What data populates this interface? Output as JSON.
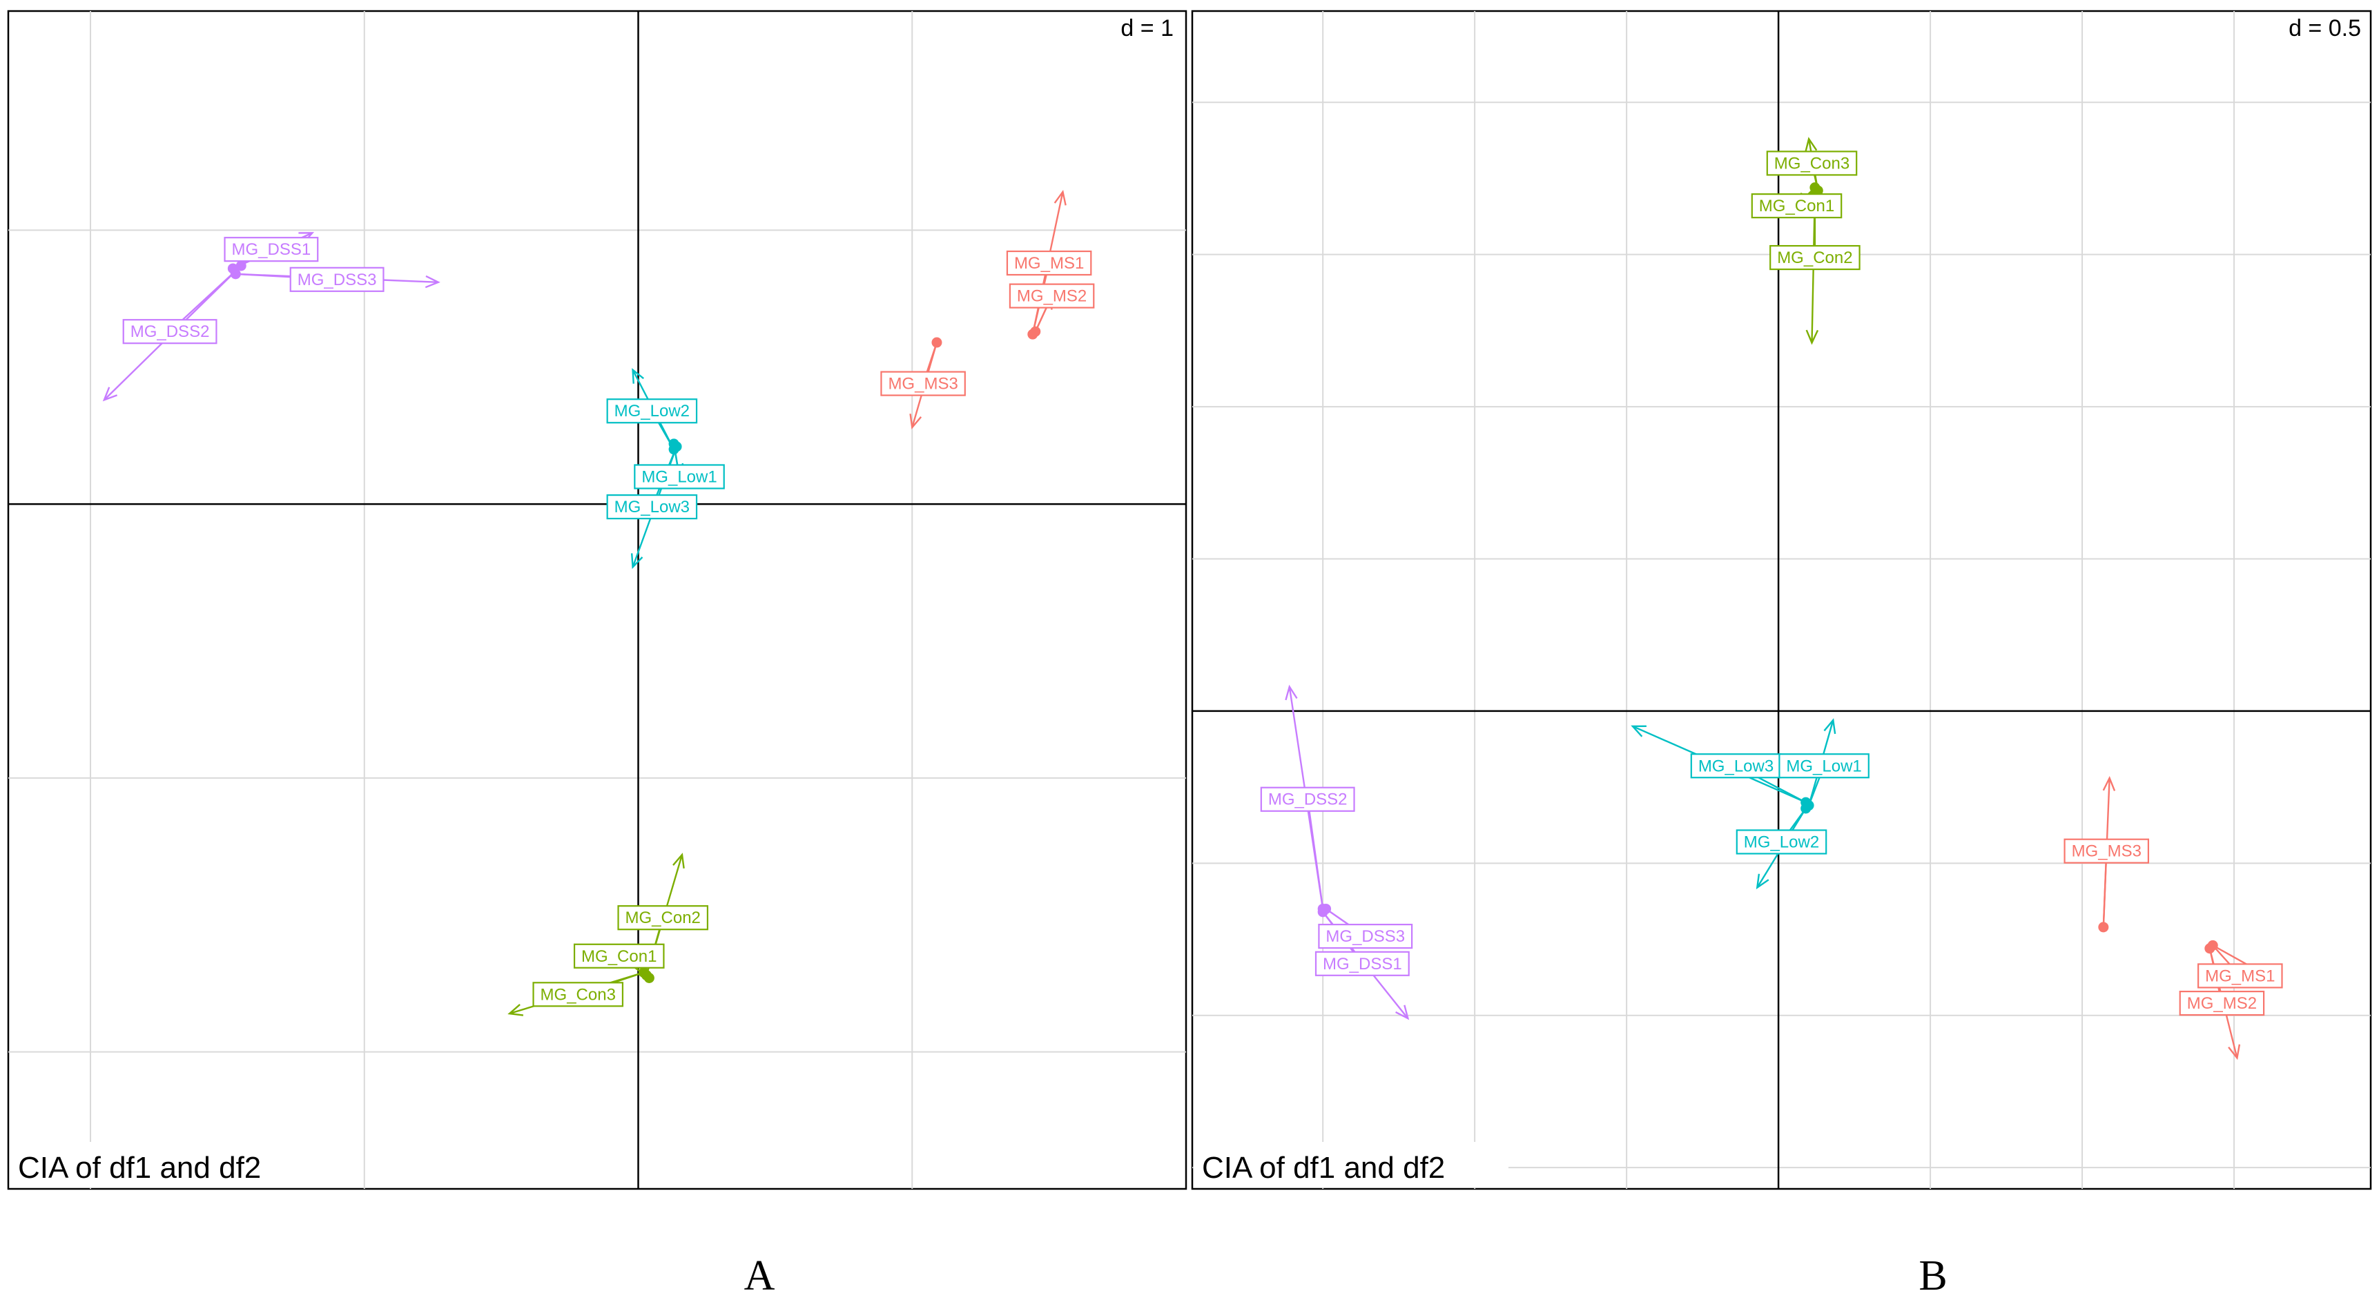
{
  "chart_data": [
    {
      "type": "scatter",
      "panel_label": "A",
      "title": "CIA of df1 and df2",
      "scale_label": "d = 1",
      "xlim": [
        -2.3,
        2.0
      ],
      "ylim": [
        -2.5,
        1.8
      ],
      "grid_x": [
        -2,
        -1,
        1
      ],
      "grid_y": [
        -2,
        -1,
        1
      ],
      "points": [
        {
          "label": "MG_DSS1",
          "group": "DSS",
          "x": -1.48,
          "y": 0.86,
          "arrow_to": [
            -1.19,
            0.99
          ],
          "label_pos": [
            -1.34,
            0.93
          ]
        },
        {
          "label": "MG_DSS3",
          "group": "DSS",
          "x": -1.47,
          "y": 0.84,
          "arrow_to": [
            -0.73,
            0.81
          ],
          "label_pos": [
            -1.1,
            0.82
          ]
        },
        {
          "label": "MG_DSS2",
          "group": "DSS",
          "x": -1.45,
          "y": 0.87,
          "arrow_to": [
            -1.95,
            0.38
          ],
          "label_pos": [
            -1.71,
            0.63
          ]
        },
        {
          "label": "MG_Low2",
          "group": "Low",
          "x": 0.13,
          "y": 0.2,
          "arrow_to": [
            -0.02,
            0.49
          ],
          "label_pos": [
            0.05,
            0.34
          ]
        },
        {
          "label": "MG_Low1",
          "group": "Low",
          "x": 0.13,
          "y": 0.22,
          "arrow_to": [
            0.15,
            0.1
          ],
          "label_pos": [
            0.15,
            0.1
          ]
        },
        {
          "label": "MG_Low3",
          "group": "Low",
          "x": 0.14,
          "y": 0.21,
          "arrow_to": [
            -0.02,
            -0.23
          ],
          "label_pos": [
            0.05,
            -0.01
          ]
        },
        {
          "label": "MG_MS1",
          "group": "MS",
          "x": 1.44,
          "y": 0.62,
          "arrow_to": [
            1.55,
            1.14
          ],
          "label_pos": [
            1.5,
            0.88
          ]
        },
        {
          "label": "MG_MS2",
          "group": "MS",
          "x": 1.45,
          "y": 0.63,
          "arrow_to": [
            1.51,
            0.76
          ],
          "label_pos": [
            1.51,
            0.76
          ]
        },
        {
          "label": "MG_MS3",
          "group": "MS",
          "x": 1.09,
          "y": 0.59,
          "arrow_to": [
            1.0,
            0.28
          ],
          "label_pos": [
            1.04,
            0.44
          ]
        },
        {
          "label": "MG_Con2",
          "group": "Con",
          "x": 0.03,
          "y": -1.72,
          "arrow_to": [
            0.16,
            -1.28
          ],
          "label_pos": [
            0.09,
            -1.51
          ]
        },
        {
          "label": "MG_Con1",
          "group": "Con",
          "x": 0.04,
          "y": -1.73,
          "arrow_to": [
            -0.07,
            -1.65
          ],
          "label_pos": [
            -0.07,
            -1.65
          ]
        },
        {
          "label": "MG_Con3",
          "group": "Con",
          "x": 0.02,
          "y": -1.71,
          "arrow_to": [
            -0.47,
            -1.86
          ],
          "label_pos": [
            -0.22,
            -1.79
          ]
        }
      ]
    },
    {
      "type": "scatter",
      "panel_label": "B",
      "title": "CIA of df1 and df2",
      "scale_label": "d = 0.5",
      "xlim": [
        -1.93,
        1.95
      ],
      "ylim": [
        -1.57,
        2.3
      ],
      "grid_x": [
        -1.5,
        -1.0,
        -0.5,
        0.5,
        1.0,
        1.5
      ],
      "grid_y": [
        -1.5,
        -1.0,
        -0.5,
        0.5,
        1.0,
        1.5,
        2.0
      ],
      "points": [
        {
          "label": "MG_Con3",
          "group": "Con",
          "x": 0.13,
          "y": 1.71,
          "arrow_to": [
            0.1,
            1.88
          ],
          "label_pos": [
            0.11,
            1.8
          ]
        },
        {
          "label": "MG_Con1",
          "group": "Con",
          "x": 0.12,
          "y": 1.72,
          "arrow_to": [
            0.06,
            1.66
          ],
          "label_pos": [
            0.06,
            1.66
          ]
        },
        {
          "label": "MG_Con2",
          "group": "Con",
          "x": 0.12,
          "y": 1.7,
          "arrow_to": [
            0.11,
            1.21
          ],
          "label_pos": [
            0.12,
            1.49
          ]
        },
        {
          "label": "MG_Low3",
          "group": "Low",
          "x": 0.09,
          "y": -0.3,
          "arrow_to": [
            -0.48,
            -0.05
          ],
          "label_pos": [
            -0.14,
            -0.18
          ]
        },
        {
          "label": "MG_Low1",
          "group": "Low",
          "x": 0.1,
          "y": -0.31,
          "arrow_to": [
            0.18,
            -0.03
          ],
          "label_pos": [
            0.15,
            -0.18
          ]
        },
        {
          "label": "MG_Low2",
          "group": "Low",
          "x": 0.09,
          "y": -0.32,
          "arrow_to": [
            -0.07,
            -0.58
          ],
          "label_pos": [
            0.01,
            -0.43
          ]
        },
        {
          "label": "MG_DSS2",
          "group": "DSS",
          "x": -1.5,
          "y": -0.65,
          "arrow_to": [
            -1.61,
            0.08
          ],
          "label_pos": [
            -1.55,
            -0.29
          ]
        },
        {
          "label": "MG_DSS3",
          "group": "DSS",
          "x": -1.49,
          "y": -0.65,
          "arrow_to": [
            -1.36,
            -0.74
          ],
          "label_pos": [
            -1.36,
            -0.74
          ]
        },
        {
          "label": "MG_DSS1",
          "group": "DSS",
          "x": -1.5,
          "y": -0.66,
          "arrow_to": [
            -1.22,
            -1.01
          ],
          "label_pos": [
            -1.37,
            -0.83
          ]
        },
        {
          "label": "MG_MS3",
          "group": "MS",
          "x": 1.07,
          "y": -0.71,
          "arrow_to": [
            1.09,
            -0.22
          ],
          "label_pos": [
            1.08,
            -0.46
          ]
        },
        {
          "label": "MG_MS1",
          "group": "MS",
          "x": 1.43,
          "y": -0.77,
          "arrow_to": [
            1.61,
            -0.87
          ],
          "label_pos": [
            1.52,
            -0.87
          ]
        },
        {
          "label": "MG_MS2",
          "group": "MS",
          "x": 1.42,
          "y": -0.78,
          "arrow_to": [
            1.51,
            -1.14
          ],
          "label_pos": [
            1.46,
            -0.96
          ]
        }
      ]
    }
  ],
  "colors": {
    "DSS": "#c77cff",
    "Low": "#00bfc4",
    "MS": "#f8766d",
    "Con": "#7cae00",
    "grid": "#d9d9d9",
    "axis": "#000000"
  }
}
